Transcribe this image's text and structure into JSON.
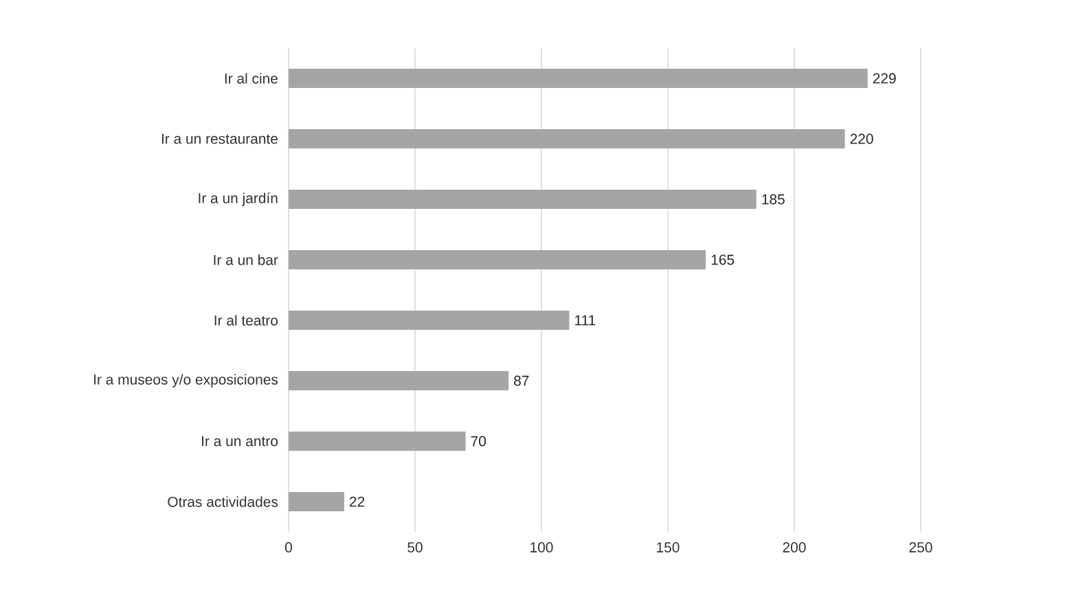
{
  "chart_data": {
    "type": "bar",
    "orientation": "horizontal",
    "categories": [
      "Ir al cine",
      "Ir a un restaurante",
      "Ir a un jardín",
      "Ir a un bar",
      "Ir al teatro",
      "Ir a museos y/o exposiciones",
      "Ir a un antro",
      "Otras actividades"
    ],
    "values": [
      229,
      220,
      185,
      165,
      111,
      87,
      70,
      22
    ],
    "color": "#a5a5a5",
    "xlim": [
      0,
      250
    ],
    "xticks": [
      0,
      50,
      100,
      150,
      200,
      250
    ],
    "grid": "x",
    "data_labels": true
  }
}
